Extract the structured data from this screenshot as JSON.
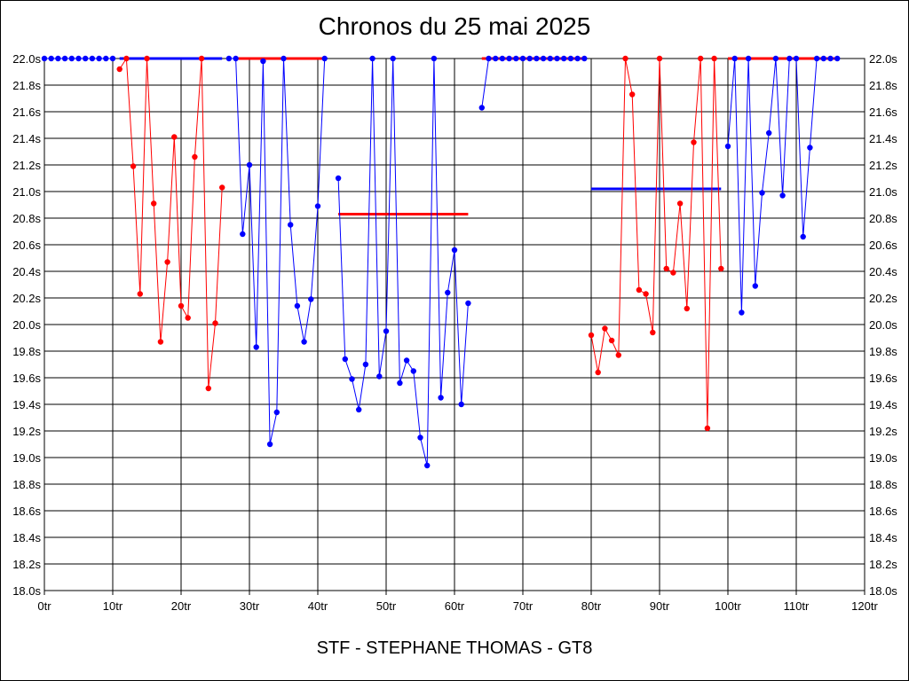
{
  "chart_data": {
    "type": "line",
    "title": "Chronos du 25 mai 2025",
    "subtitle": "STF - STEPHANE THOMAS - GT8",
    "xlabel": "",
    "ylabel": "",
    "x_unit": "tr",
    "y_unit": "s",
    "xlim": [
      0,
      120
    ],
    "ylim": [
      18.0,
      22.0
    ],
    "x_ticks": [
      0,
      10,
      20,
      30,
      40,
      50,
      60,
      70,
      80,
      90,
      100,
      110,
      120
    ],
    "y_ticks": [
      18.0,
      18.2,
      18.4,
      18.6,
      18.8,
      19.0,
      19.2,
      19.4,
      19.6,
      19.8,
      20.0,
      20.2,
      20.4,
      20.6,
      20.8,
      21.0,
      21.2,
      21.4,
      21.6,
      21.8,
      22.0
    ],
    "y_ticks_both_sides": true,
    "grid": true,
    "colors": {
      "red": "#ff0000",
      "blue": "#0000ff",
      "axis": "#000000",
      "grid": "#000000"
    },
    "series": [
      {
        "name": "seg-1",
        "color": "blue",
        "points": [
          [
            0,
            22.0
          ],
          [
            1,
            22.0
          ],
          [
            2,
            22.0
          ],
          [
            3,
            22.0
          ],
          [
            4,
            22.0
          ],
          [
            5,
            22.0
          ],
          [
            6,
            22.0
          ],
          [
            7,
            22.0
          ],
          [
            8,
            22.0
          ],
          [
            9,
            22.0
          ],
          [
            10,
            22.0
          ]
        ]
      },
      {
        "name": "seg-2",
        "color": "red",
        "points": [
          [
            11,
            21.92
          ],
          [
            12,
            22.0
          ],
          [
            13,
            21.19
          ],
          [
            14,
            20.23
          ],
          [
            15,
            22.0
          ],
          [
            16,
            20.91
          ],
          [
            17,
            19.87
          ],
          [
            18,
            20.47
          ],
          [
            19,
            21.41
          ],
          [
            20,
            20.14
          ],
          [
            21,
            20.05
          ],
          [
            22,
            21.26
          ],
          [
            23,
            22.0
          ],
          [
            24,
            19.52
          ],
          [
            25,
            20.01
          ],
          [
            26,
            21.03
          ]
        ]
      },
      {
        "name": "seg-3",
        "color": "blue",
        "points": [
          [
            27,
            22.0
          ],
          [
            28,
            22.0
          ],
          [
            29,
            20.68
          ],
          [
            30,
            21.2
          ],
          [
            31,
            19.83
          ],
          [
            32,
            21.98
          ],
          [
            33,
            19.1
          ],
          [
            34,
            19.34
          ],
          [
            35,
            22.0
          ],
          [
            36,
            20.75
          ],
          [
            37,
            20.14
          ],
          [
            38,
            19.87
          ],
          [
            39,
            20.19
          ],
          [
            40,
            20.89
          ],
          [
            41,
            22.0
          ]
        ]
      },
      {
        "name": "seg-4",
        "color": "blue",
        "points": [
          [
            43,
            21.1
          ],
          [
            44,
            19.74
          ],
          [
            45,
            19.59
          ],
          [
            46,
            19.36
          ],
          [
            47,
            19.7
          ],
          [
            48,
            22.0
          ],
          [
            49,
            19.61
          ],
          [
            50,
            19.95
          ],
          [
            51,
            22.0
          ],
          [
            52,
            19.56
          ],
          [
            53,
            19.73
          ],
          [
            54,
            19.65
          ],
          [
            55,
            19.15
          ],
          [
            56,
            18.94
          ],
          [
            57,
            22.0
          ],
          [
            58,
            19.45
          ],
          [
            59,
            20.24
          ],
          [
            60,
            20.56
          ],
          [
            61,
            19.4
          ],
          [
            62,
            20.16
          ]
        ]
      },
      {
        "name": "seg-5",
        "color": "blue",
        "points": [
          [
            64,
            21.63
          ],
          [
            65,
            22.0
          ],
          [
            66,
            22.0
          ],
          [
            67,
            22.0
          ],
          [
            68,
            22.0
          ],
          [
            69,
            22.0
          ],
          [
            70,
            22.0
          ],
          [
            71,
            22.0
          ],
          [
            72,
            22.0
          ],
          [
            73,
            22.0
          ],
          [
            74,
            22.0
          ],
          [
            75,
            22.0
          ],
          [
            76,
            22.0
          ],
          [
            77,
            22.0
          ],
          [
            78,
            22.0
          ],
          [
            79,
            22.0
          ]
        ]
      },
      {
        "name": "seg-6",
        "color": "red",
        "points": [
          [
            80,
            19.92
          ],
          [
            81,
            19.64
          ],
          [
            82,
            19.97
          ],
          [
            83,
            19.88
          ],
          [
            84,
            19.77
          ],
          [
            85,
            22.0
          ],
          [
            86,
            21.73
          ],
          [
            87,
            20.26
          ],
          [
            88,
            20.23
          ],
          [
            89,
            19.94
          ],
          [
            90,
            22.0
          ],
          [
            91,
            20.42
          ],
          [
            92,
            20.39
          ],
          [
            93,
            20.91
          ],
          [
            94,
            20.12
          ],
          [
            95,
            21.37
          ],
          [
            96,
            22.0
          ],
          [
            97,
            19.22
          ],
          [
            98,
            22.0
          ],
          [
            99,
            20.42
          ]
        ]
      },
      {
        "name": "seg-7",
        "color": "blue",
        "points": [
          [
            100,
            21.34
          ],
          [
            101,
            22.0
          ],
          [
            102,
            20.09
          ],
          [
            103,
            22.0
          ],
          [
            104,
            20.29
          ],
          [
            105,
            20.99
          ],
          [
            106,
            21.44
          ],
          [
            107,
            22.0
          ],
          [
            108,
            20.97
          ],
          [
            109,
            22.0
          ],
          [
            110,
            22.0
          ],
          [
            111,
            20.66
          ],
          [
            112,
            21.33
          ],
          [
            113,
            22.0
          ],
          [
            114,
            22.0
          ],
          [
            115,
            22.0
          ],
          [
            116,
            22.0
          ]
        ]
      }
    ],
    "reference_lines": [
      {
        "name": "ref-1",
        "color": "blue",
        "x_start": 11,
        "x_end": 26,
        "y": 22.0
      },
      {
        "name": "ref-2",
        "color": "red",
        "x_start": 28,
        "x_end": 41,
        "y": 22.0
      },
      {
        "name": "ref-3",
        "color": "red",
        "x_start": 43,
        "x_end": 62,
        "y": 20.83
      },
      {
        "name": "ref-4",
        "color": "red",
        "x_start": 64,
        "x_end": 79,
        "y": 22.0
      },
      {
        "name": "ref-5",
        "color": "blue",
        "x_start": 80,
        "x_end": 99,
        "y": 21.02
      },
      {
        "name": "ref-6",
        "color": "red",
        "x_start": 100,
        "x_end": 116,
        "y": 22.0
      }
    ]
  }
}
